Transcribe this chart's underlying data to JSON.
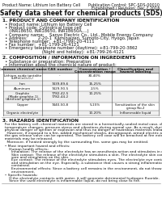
{
  "top_left_text": "Product Name: Lithium Ion Battery Cell",
  "top_right_line1": "Publication Control: SPC-SDS-00010",
  "top_right_line2": "Established / Revision: Dec.7,2016",
  "title": "Safety data sheet for chemical products (SDS)",
  "section1_header": "1. PRODUCT AND COMPANY IDENTIFICATION",
  "section1_lines": [
    "  • Product name: Lithium Ion Battery Cell",
    "  • Product code: Cylindrical type cell",
    "     (INR18650, INR18650, INR18650A,...)",
    "  • Company name:    Sanyo Electric Co., Ltd., Mobile Energy Company",
    "  • Address:        2-20-1  Kaminaizen, Sumoto-City, Hyogo, Japan",
    "  • Telephone number:  +81-(799)-20-4111",
    "  • Fax number:  +81-1799-26-4121",
    "  • Emergency telephone number (daytime): +81-799-20-3862",
    "                              (Night and holiday): +81-799-26-4121"
  ],
  "section2_header": "2. COMPOSITION / INFORMATION ON INGREDIENTS",
  "section2_intro": "  • Substance or preparation: Preparation",
  "section2_sub": "  • Information about the chemical nature of product:",
  "col_labels": [
    "Common chemical name",
    "CAS number",
    "Concentration /\nConcentration range",
    "Classification and\nhazard labeling"
  ],
  "table_rows": [
    [
      "Lithium oxide tantalite\n(LiMnCoO₂O₄)",
      "-",
      "30-40%",
      ""
    ],
    [
      "Iron",
      "7439-89-6",
      "15-25%",
      ""
    ],
    [
      "Aluminum",
      "7429-90-5",
      "2-5%",
      ""
    ],
    [
      "Graphite\n(Mode graphite-1)\n(Artificial graphite-1)",
      "7782-42-5\n7782-44-2",
      "10-25%",
      ""
    ],
    [
      "Copper",
      "7440-50-8",
      "5-15%",
      "Sensitization of the skin\ngroup No.2"
    ],
    [
      "Organic electrolyte",
      "-",
      "10-20%",
      "Inflammable liquid"
    ]
  ],
  "section3_header": "3. HAZARDS IDENTIFICATION",
  "section3_para1": [
    "  For the battery cell, chemical materials are stored in a hermetically-sealed metal case, designed to withstand",
    "  temperature changes, pressure-stress and vibrations during normal use. As a result, during normal use, there is no",
    "  physical danger of ignition or explosion and thus no danger of hazardous materials leakage.",
    "    However, if exposed to a fire, added mechanical shocks, decomposed, armed electric attack of any nature use,",
    "  the gas release valve can be operated. The battery cell case will be breached at fire extremes. Hazardous",
    "  materials may be released.",
    "    Moreover, if heated strongly by the surrounding fire, some gas may be emitted."
  ],
  "section3_bullet1_header": "  • Most important hazard and effects:",
  "section3_bullet1_lines": [
    "      Human health effects:",
    "        Inhalation: The release of the electrolyte has an anesthesia action and stimulates in respiratory tract.",
    "        Skin contact: The release of the electrolyte stimulates a skin. The electrolyte skin contact causes a",
    "        sore and stimulation on the skin.",
    "        Eye contact: The release of the electrolyte stimulates eyes. The electrolyte eye contact causes a sore",
    "        and stimulation on the eye. Especially, a substance that causes a strong inflammation of the eye is",
    "        contained.",
    "        Environmental effects: Since a battery cell remains in the environment, do not throw out it into the",
    "        environment."
  ],
  "section3_bullet2_header": "  • Specific hazards:",
  "section3_bullet2_lines": [
    "      If the electrolyte contacts with water, it will generate detrimental hydrogen fluoride.",
    "      Since the used electrolyte is inflammable liquid, do not bring close to fire."
  ],
  "bg_color": "#ffffff",
  "text_color": "#111111",
  "line_color": "#888888",
  "fs_tiny": 3.5,
  "fs_body": 3.8,
  "fs_title": 5.5,
  "fs_header": 4.2,
  "lh": 4.2,
  "lh_small": 3.8
}
